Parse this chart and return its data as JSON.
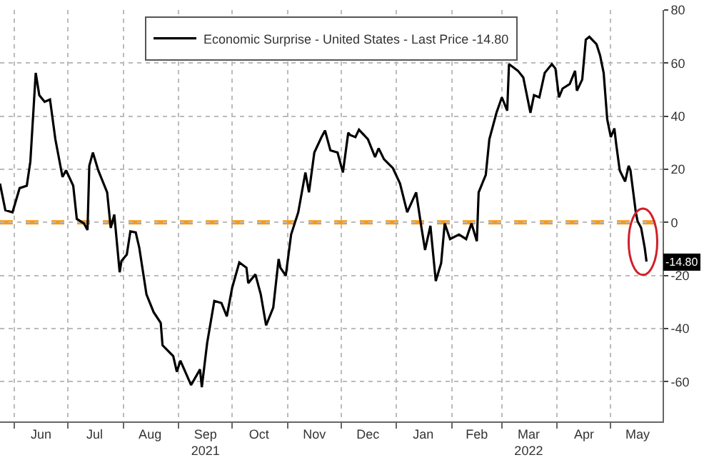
{
  "chart_data": {
    "type": "line",
    "x": [
      "2021-05-24",
      "2021-05-27",
      "2021-05-31",
      "2021-06-04",
      "2021-06-08",
      "2021-06-10",
      "2021-06-13",
      "2021-06-15",
      "2021-06-18",
      "2021-06-21",
      "2021-06-24",
      "2021-06-28",
      "2021-06-30",
      "2021-07-04",
      "2021-07-06",
      "2021-07-10",
      "2021-07-12",
      "2021-07-13",
      "2021-07-15",
      "2021-07-18",
      "2021-07-23",
      "2021-07-25",
      "2021-07-27",
      "2021-07-30",
      "2021-07-31",
      "2021-08-03",
      "2021-08-05",
      "2021-08-08",
      "2021-08-10",
      "2021-08-14",
      "2021-08-18",
      "2021-08-22",
      "2021-08-23",
      "2021-08-29",
      "2021-08-31",
      "2021-09-02",
      "2021-09-08",
      "2021-09-13",
      "2021-09-14",
      "2021-09-17",
      "2021-09-21",
      "2021-09-25",
      "2021-09-28",
      "2021-10-01",
      "2021-10-05",
      "2021-10-09",
      "2021-10-10",
      "2021-10-14",
      "2021-10-17",
      "2021-10-20",
      "2021-10-24",
      "2021-10-27",
      "2021-10-28",
      "2021-10-31",
      "2021-11-03",
      "2021-11-07",
      "2021-11-11",
      "2021-11-13",
      "2021-11-16",
      "2021-11-20",
      "2021-11-22",
      "2021-11-25",
      "2021-11-29",
      "2021-12-02",
      "2021-12-05",
      "2021-12-06",
      "2021-12-09",
      "2021-12-11",
      "2021-12-16",
      "2021-12-20",
      "2021-12-22",
      "2021-12-25",
      "2021-12-30",
      "2022-01-03",
      "2022-01-07",
      "2022-01-12",
      "2022-01-15",
      "2022-01-17",
      "2022-01-20",
      "2022-01-23",
      "2022-01-26",
      "2022-01-28",
      "2022-01-31",
      "2022-02-05",
      "2022-02-09",
      "2022-02-12",
      "2022-02-15",
      "2022-02-16",
      "2022-02-20",
      "2022-02-22",
      "2022-02-26",
      "2022-03-01",
      "2022-03-04",
      "2022-03-05",
      "2022-03-10",
      "2022-03-13",
      "2022-03-17",
      "2022-03-19",
      "2022-03-22",
      "2022-03-25",
      "2022-03-29",
      "2022-03-31",
      "2022-04-02",
      "2022-04-04",
      "2022-04-08",
      "2022-04-11",
      "2022-04-12",
      "2022-04-15",
      "2022-04-17",
      "2022-04-19",
      "2022-04-23",
      "2022-04-25",
      "2022-04-27",
      "2022-04-29",
      "2022-05-01",
      "2022-05-03",
      "2022-05-04",
      "2022-05-06",
      "2022-05-09",
      "2022-05-11",
      "2022-05-12",
      "2022-05-15",
      "2022-05-16",
      "2022-05-18",
      "2022-05-20",
      "2022-05-21"
    ],
    "series": [
      {
        "name": "Economic Surprise - United States - Last Price -14.80",
        "color": "#000000",
        "values": [
          14.6,
          4.6,
          3.8,
          12.9,
          13.8,
          22.9,
          56.3,
          47.9,
          45.4,
          46.3,
          31.3,
          17.1,
          19.6,
          13.8,
          1.3,
          -0.4,
          -2.9,
          21.3,
          26.3,
          19.6,
          11.3,
          -2.1,
          2.9,
          -18.8,
          -14.6,
          -12.1,
          -3.4,
          -3.8,
          -9.6,
          -27.1,
          -33.8,
          -37.9,
          -46.3,
          -50.4,
          -56.3,
          -52.1,
          -61.3,
          -55.4,
          -62.1,
          -45.4,
          -29.6,
          -30.4,
          -35.4,
          -24.6,
          -15.1,
          -17.1,
          -22.9,
          -19.6,
          -27.1,
          -38.8,
          -32.1,
          -13.8,
          -17.1,
          -20.1,
          -4.6,
          3.8,
          18.8,
          11.3,
          26.3,
          32.1,
          34.6,
          27.1,
          26.3,
          18.8,
          33.8,
          32.9,
          32.1,
          34.9,
          31.3,
          24.6,
          27.9,
          23.8,
          20.4,
          14.6,
          3.8,
          11.3,
          -2.1,
          -10.4,
          -1.3,
          -22.1,
          -15.4,
          -0.4,
          -6.3,
          -4.6,
          -6.3,
          -0.4,
          -7.1,
          11.3,
          17.9,
          31.3,
          41.3,
          47.1,
          42.1,
          59.6,
          57.1,
          54.6,
          41.3,
          47.9,
          47.1,
          56.3,
          59.6,
          57.9,
          47.1,
          50.4,
          52.1,
          57.1,
          49.6,
          53.8,
          68.8,
          69.9,
          67.1,
          62.9,
          56.3,
          38.8,
          32.1,
          35.4,
          29.6,
          19.6,
          15.4,
          21.3,
          19.6,
          3.8,
          0.4,
          -2.1,
          -9.6,
          -14.8
        ]
      }
    ],
    "xlim": [
      "2021-05-24",
      "2022-05-30"
    ],
    "xticks": [
      {
        "value": "2021-06-01",
        "label": null
      },
      {
        "value": "2021-06-16",
        "label": "Jun"
      },
      {
        "value": "2021-07-01",
        "label": null
      },
      {
        "value": "2021-07-16",
        "label": "Jul"
      },
      {
        "value": "2021-08-01",
        "label": null
      },
      {
        "value": "2021-08-16",
        "label": "Aug"
      },
      {
        "value": "2021-09-01",
        "label": null
      },
      {
        "value": "2021-09-16",
        "label": "Sep\n2021"
      },
      {
        "value": "2021-10-01",
        "label": null
      },
      {
        "value": "2021-10-16",
        "label": "Oct"
      },
      {
        "value": "2021-11-01",
        "label": null
      },
      {
        "value": "2021-11-16",
        "label": "Nov"
      },
      {
        "value": "2021-12-01",
        "label": null
      },
      {
        "value": "2021-12-16",
        "label": "Dec"
      },
      {
        "value": "2022-01-01",
        "label": null
      },
      {
        "value": "2022-01-16",
        "label": "Jan"
      },
      {
        "value": "2022-02-01",
        "label": null
      },
      {
        "value": "2022-02-15",
        "label": "Feb"
      },
      {
        "value": "2022-03-01",
        "label": null
      },
      {
        "value": "2022-03-16",
        "label": "Mar\n2022"
      },
      {
        "value": "2022-04-01",
        "label": null
      },
      {
        "value": "2022-04-16",
        "label": "Apr"
      },
      {
        "value": "2022-05-01",
        "label": null
      },
      {
        "value": "2022-05-16",
        "label": "May"
      }
    ],
    "ylim": [
      -75,
      80
    ],
    "yticks": [
      -60,
      -40,
      -20,
      0,
      20,
      40,
      60,
      80
    ],
    "grid": true,
    "legend": "top",
    "marker": "none",
    "line_style": "solid",
    "ref_lines": [
      {
        "axis": "y",
        "value": 0,
        "color": "#f39a1e",
        "line_style": "dashed"
      }
    ],
    "annotations": [
      {
        "text": "-14.80",
        "x": "2022-05-21",
        "y": -14.8
      }
    ]
  }
}
